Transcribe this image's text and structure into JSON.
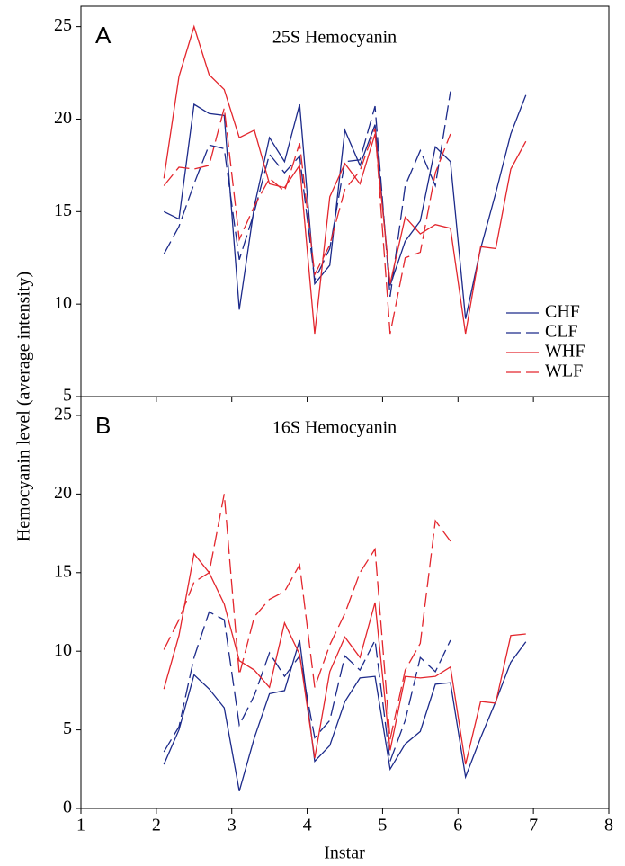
{
  "chart_data": [
    {
      "type": "line",
      "panel_label": "A",
      "title": "25S Hemocyanin",
      "y_label": "Hemocyanin level (average intensity)",
      "x": [
        2.1,
        2.3,
        2.5,
        2.7,
        2.9,
        3.1,
        3.3,
        3.5,
        3.7,
        3.9,
        4.1,
        4.3,
        4.5,
        4.7,
        4.9,
        5.1,
        5.3,
        5.5,
        5.7,
        5.9,
        6.1,
        6.3,
        6.5,
        6.7,
        6.9
      ],
      "xlim": [
        1,
        8
      ],
      "xticks": [
        1,
        2,
        3,
        4,
        5,
        6,
        7,
        8
      ],
      "ylim": [
        5,
        26.1
      ],
      "yticks": [
        5,
        10,
        15,
        20,
        25
      ],
      "legend": "lower right",
      "series": [
        {
          "name": "CHF",
          "color": "#1c2a8a",
          "dash": false,
          "values": [
            15,
            14.6,
            20.8,
            20.3,
            20.2,
            9.7,
            15.3,
            19,
            17.7,
            20.8,
            11.1,
            12.1,
            19.4,
            17.5,
            19.7,
            11,
            13.4,
            14.5,
            18.5,
            17.7,
            9.2,
            13,
            16,
            19.2,
            21.3
          ]
        },
        {
          "name": "CLF",
          "color": "#1c2a8a",
          "dash": true,
          "values": [
            12.7,
            14.2,
            16.5,
            18.6,
            18.4,
            12.4,
            15,
            18.1,
            17.1,
            18,
            11.3,
            13,
            17.7,
            17.8,
            20.7,
            10.4,
            16.4,
            18.3,
            16.4,
            21.5,
            null,
            null,
            null,
            null,
            null
          ]
        },
        {
          "name": "WHF",
          "color": "#e3262d",
          "dash": false,
          "values": [
            16.8,
            22.3,
            25,
            22.4,
            21.6,
            19,
            19.4,
            16.5,
            16.3,
            17.5,
            8.4,
            15.8,
            17.6,
            16.5,
            19.2,
            11.1,
            14.7,
            13.8,
            14.3,
            14.1,
            8.4,
            13.1,
            13,
            17.3,
            18.8
          ]
        },
        {
          "name": "WLF",
          "color": "#e3262d",
          "dash": true,
          "values": [
            16.4,
            17.4,
            17.3,
            17.5,
            20.6,
            13.5,
            15.3,
            16.8,
            16.1,
            18.7,
            11.6,
            13.2,
            16.2,
            17.2,
            19.5,
            8.4,
            12.5,
            12.8,
            17.1,
            19.2,
            null,
            null,
            null,
            null,
            null
          ]
        }
      ]
    },
    {
      "type": "line",
      "panel_label": "B",
      "title": "16S Hemocyanin",
      "x_label": "Instar",
      "x": [
        2.1,
        2.3,
        2.5,
        2.7,
        2.9,
        3.1,
        3.3,
        3.5,
        3.7,
        3.9,
        4.1,
        4.3,
        4.5,
        4.7,
        4.9,
        5.1,
        5.3,
        5.5,
        5.7,
        5.9,
        6.1,
        6.3,
        6.5,
        6.7,
        6.9
      ],
      "xlim": [
        1,
        8
      ],
      "xticks": [
        1,
        2,
        3,
        4,
        5,
        6,
        7,
        8
      ],
      "ylim": [
        0,
        26.2
      ],
      "yticks": [
        0,
        5,
        10,
        15,
        20,
        25
      ],
      "series": [
        {
          "color": "#1c2a8a",
          "dash": false,
          "values": [
            2.8,
            5,
            8.5,
            7.6,
            6.4,
            1.1,
            4.5,
            7.3,
            7.5,
            10.7,
            3,
            4,
            6.8,
            8.3,
            8.4,
            2.5,
            4.1,
            4.9,
            7.9,
            8,
            2,
            4.5,
            6.8,
            9.3,
            10.6
          ]
        },
        {
          "color": "#1c2a8a",
          "dash": true,
          "values": [
            3.6,
            5.2,
            9.6,
            12.5,
            12,
            5.3,
            7.2,
            9.9,
            8.4,
            9.7,
            4.5,
            5.6,
            9.7,
            8.8,
            10.7,
            3,
            5.6,
            9.6,
            8.7,
            10.7,
            null,
            null,
            null,
            null,
            null
          ]
        },
        {
          "color": "#e3262d",
          "dash": false,
          "values": [
            7.6,
            11,
            16.2,
            15,
            13,
            9.4,
            8.8,
            7.7,
            11.8,
            9.8,
            3.2,
            8.7,
            10.9,
            9.6,
            13.1,
            3.7,
            8.4,
            8.3,
            8.4,
            9,
            2.8,
            6.8,
            6.7,
            11,
            11.1
          ]
        },
        {
          "color": "#e3262d",
          "dash": true,
          "values": [
            10.1,
            12,
            14.4,
            15,
            20,
            8.5,
            12.2,
            13.3,
            13.8,
            15.5,
            7.7,
            10.4,
            12.4,
            15,
            16.5,
            4.4,
            8.8,
            10.5,
            18.3,
            17,
            null,
            null,
            null,
            null,
            null
          ]
        }
      ]
    }
  ]
}
